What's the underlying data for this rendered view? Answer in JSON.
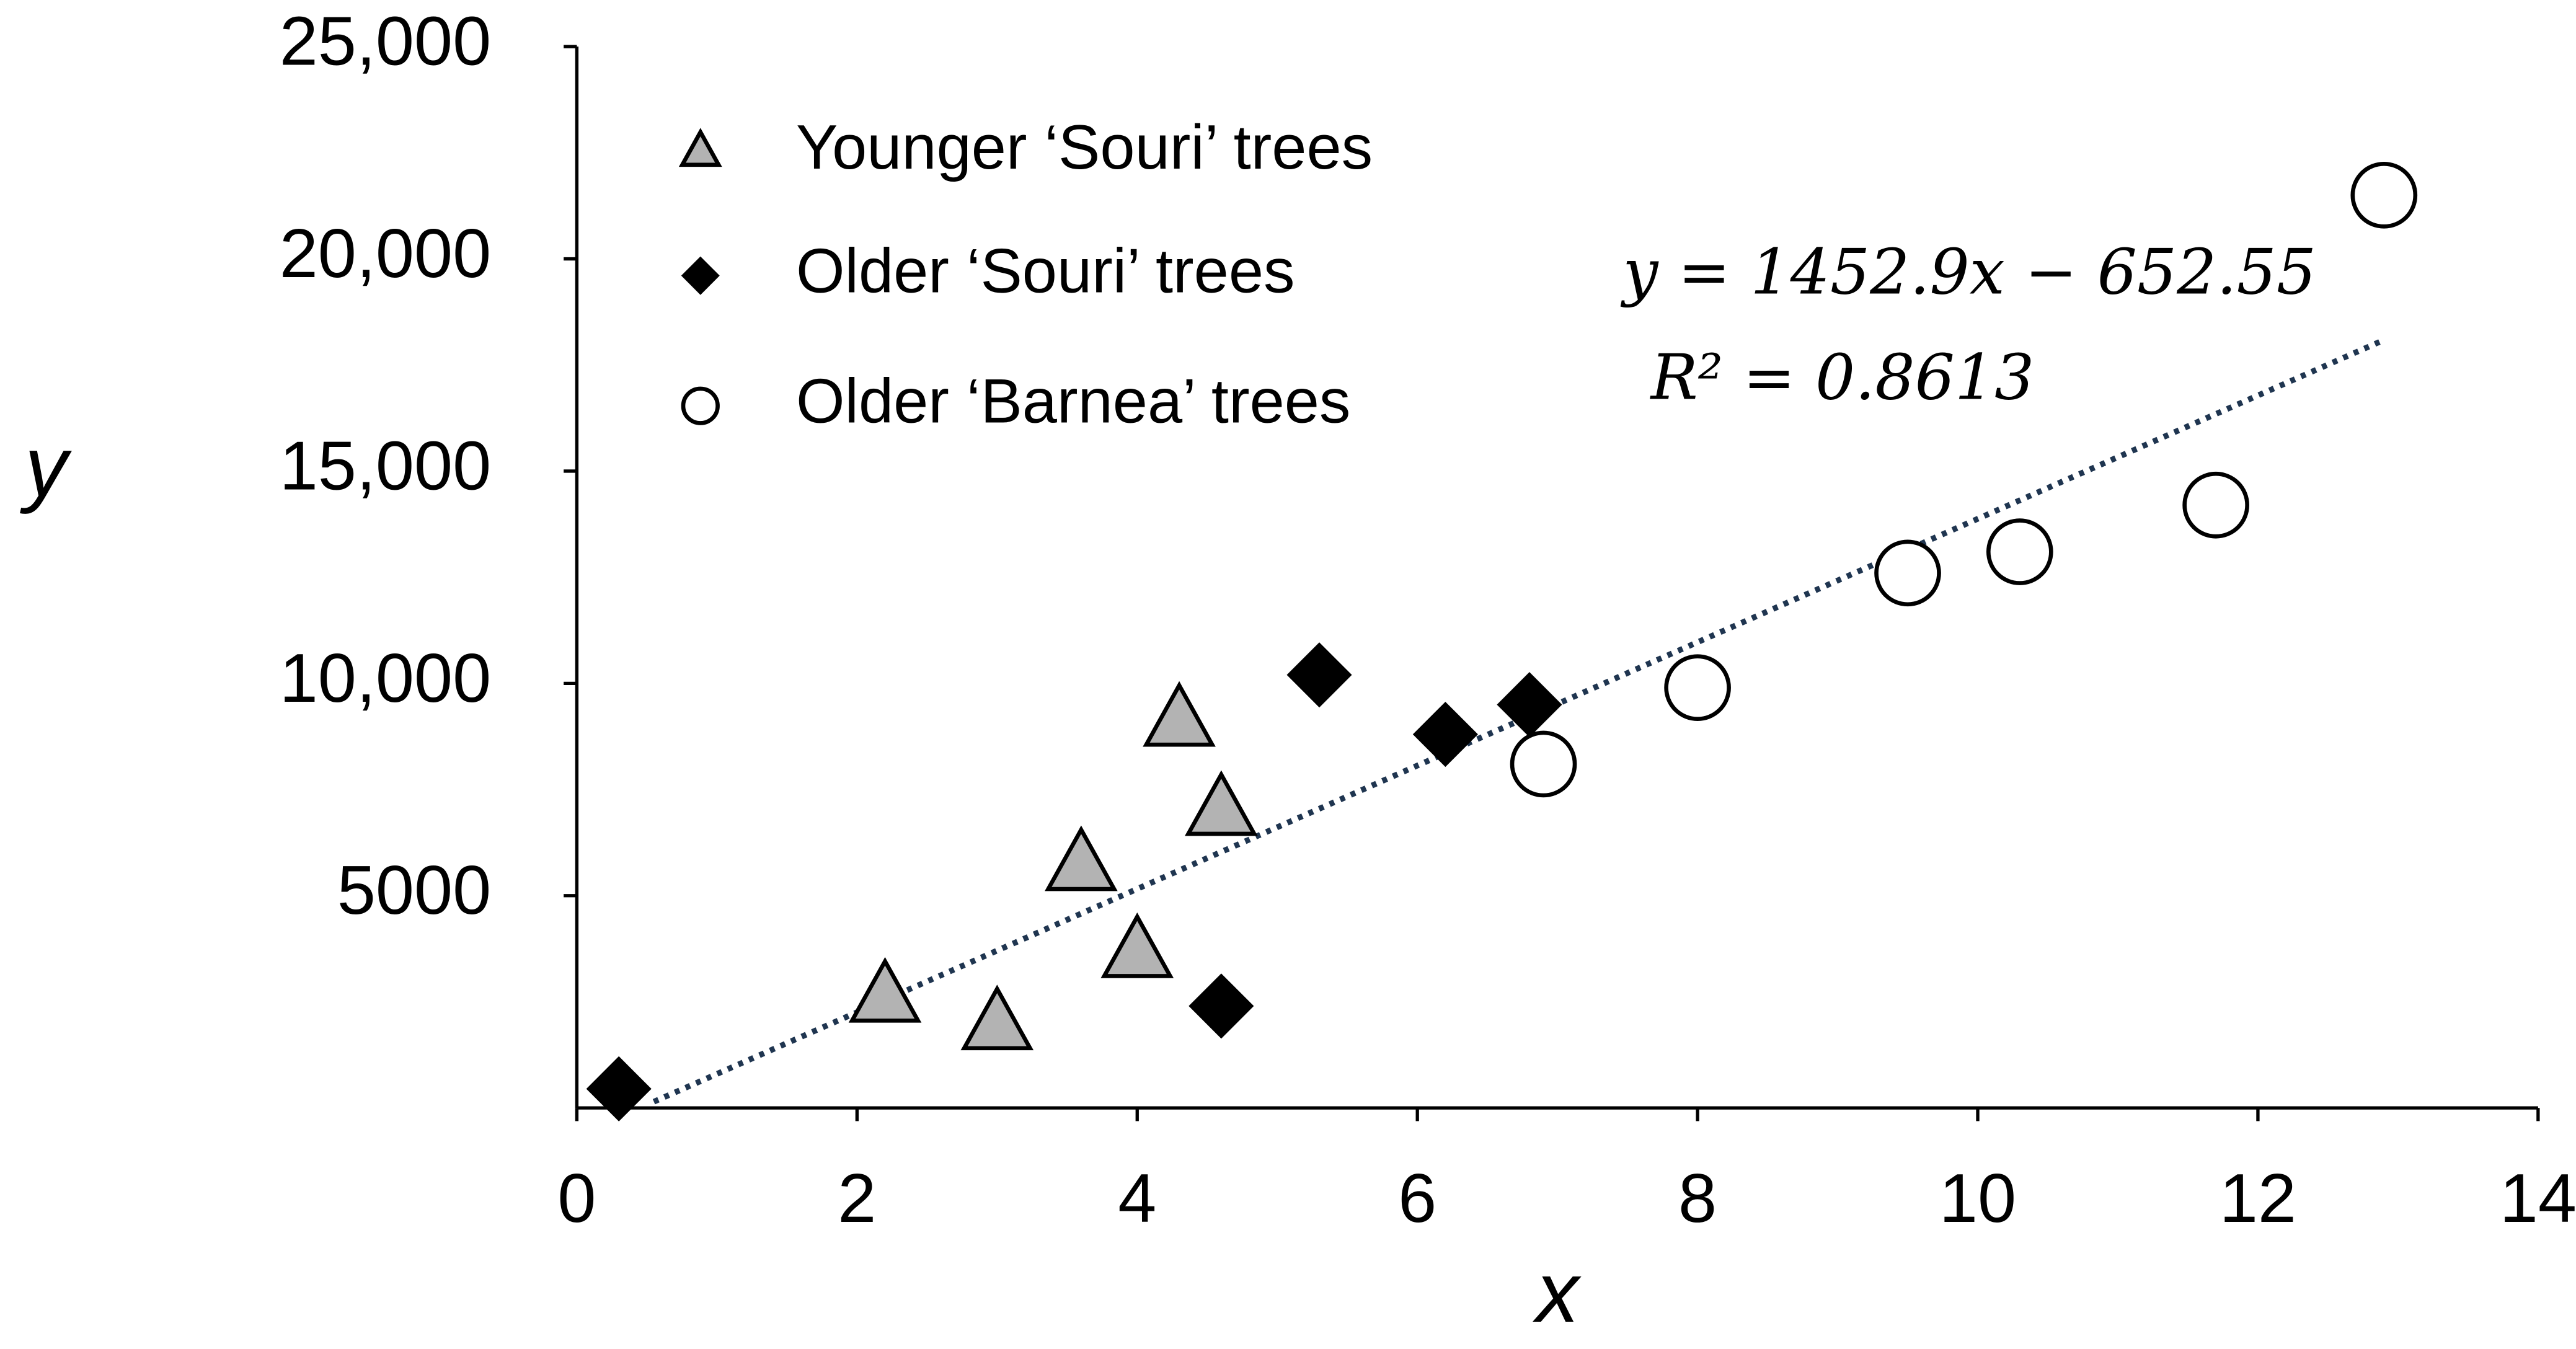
{
  "chart_data": {
    "type": "scatter",
    "xlabel": "x",
    "ylabel": "y",
    "xlim": [
      0,
      14
    ],
    "xticks": [
      0,
      2,
      4,
      6,
      8,
      10,
      12,
      14
    ],
    "ylim": [
      0,
      25000
    ],
    "yticks": [
      5000,
      {
        "value": 10000,
        "label": "10,000"
      },
      {
        "value": 15000,
        "label": "15,000"
      },
      {
        "value": 20000,
        "label": "20,000"
      },
      {
        "value": 25000,
        "label": "25,000"
      }
    ],
    "grid": false,
    "legend": "upper left",
    "series": [
      {
        "name": "Younger ‘Souri’ trees",
        "color": "#b3b3b3",
        "marker": "triangle",
        "x": [
          2.2,
          3.0,
          3.6,
          4.0,
          4.3,
          4.6
        ],
        "values": [
          2600,
          1950,
          5700,
          3650,
          9100,
          7000
        ]
      },
      {
        "name": "Older ‘Souri’ trees",
        "color": "#000000",
        "marker": "diamond",
        "x": [
          0.3,
          4.6,
          5.3,
          6.2,
          6.8
        ],
        "values": [
          450,
          2400,
          10200,
          8800,
          9500
        ]
      },
      {
        "name": "Older ‘Barnea’ trees",
        "color": "#ffffff",
        "marker": "circle",
        "x": [
          6.9,
          8.0,
          9.5,
          10.3,
          11.7,
          12.9
        ],
        "values": [
          8100,
          9900,
          12600,
          13100,
          14200,
          21500
        ]
      }
    ],
    "trendline": {
      "slope": 1452.9,
      "intercept": -652.55,
      "x": [
        0.55,
        12.9
      ],
      "color": "#1f3550",
      "equation": "y = 1452.9x − 652.55",
      "r_squared": "R² = 0.8613"
    }
  }
}
